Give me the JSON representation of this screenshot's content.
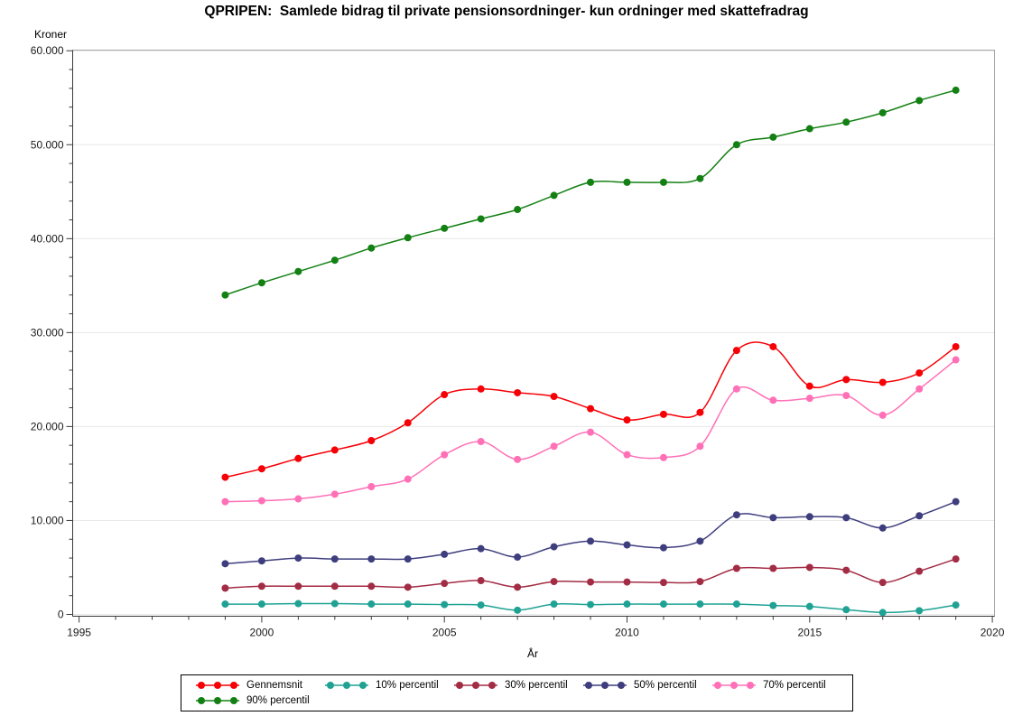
{
  "title": "QPRIPEN:  Samlede bidrag til private pensionsordninger- kun ordninger med skattefradrag",
  "chart_data": {
    "type": "line",
    "title": "QPRIPEN:  Samlede bidrag til private pensionsordninger- kun ordninger med skattefradrag",
    "xlabel": "År",
    "ylabel": "Kroner",
    "xlim": [
      1995,
      2020
    ],
    "ylim": [
      0,
      60000
    ],
    "grid": "horizontal-major",
    "legend_position": "bottom",
    "x_major_ticks": [
      {
        "value": 1995,
        "label": "1995"
      },
      {
        "value": 2000,
        "label": "2000"
      },
      {
        "value": 2005,
        "label": "2005"
      },
      {
        "value": 2010,
        "label": "2010"
      },
      {
        "value": 2015,
        "label": "2015"
      },
      {
        "value": 2020,
        "label": "2020"
      }
    ],
    "x_minor_step": 1,
    "y_major_ticks": [
      {
        "value": 0,
        "label": "0"
      },
      {
        "value": 10000,
        "label": "10.000"
      },
      {
        "value": 20000,
        "label": "20.000"
      },
      {
        "value": 30000,
        "label": "30.000"
      },
      {
        "value": 40000,
        "label": "40.000"
      },
      {
        "value": 50000,
        "label": "50.000"
      },
      {
        "value": 60000,
        "label": "60.000"
      }
    ],
    "y_minor_step": 2000,
    "x": [
      1999,
      2000,
      2001,
      2002,
      2003,
      2004,
      2005,
      2006,
      2007,
      2008,
      2009,
      2010,
      2011,
      2012,
      2013,
      2014,
      2015,
      2016,
      2017,
      2018,
      2019
    ],
    "series": [
      {
        "name": "Gennemsnit",
        "color": "#F60006",
        "values": [
          14600,
          15500,
          16600,
          17500,
          18500,
          20400,
          23400,
          24000,
          23600,
          23200,
          21900,
          20700,
          21300,
          21500,
          28100,
          28500,
          24300,
          25000,
          24700,
          25700,
          28500
        ]
      },
      {
        "name": "10% percentil",
        "color": "#1FA294",
        "values": [
          1100,
          1100,
          1150,
          1150,
          1100,
          1100,
          1050,
          1000,
          450,
          1100,
          1050,
          1100,
          1100,
          1100,
          1100,
          950,
          850,
          500,
          200,
          400,
          1000
        ]
      },
      {
        "name": "30% percentil",
        "color": "#A32C45",
        "values": [
          2800,
          3000,
          3000,
          3000,
          3000,
          2900,
          3300,
          3600,
          2900,
          3500,
          3450,
          3450,
          3400,
          3500,
          4900,
          4900,
          5000,
          4700,
          3400,
          4600,
          5900
        ]
      },
      {
        "name": "50% percentil",
        "color": "#3E3E7E",
        "values": [
          5400,
          5700,
          6000,
          5900,
          5900,
          5900,
          6400,
          7000,
          6100,
          7200,
          7800,
          7400,
          7100,
          7800,
          10600,
          10300,
          10400,
          10300,
          9200,
          10500,
          12000
        ]
      },
      {
        "name": "70% percentil",
        "color": "#FF70B7",
        "values": [
          12000,
          12100,
          12300,
          12800,
          13600,
          14400,
          17000,
          18400,
          16500,
          17900,
          19400,
          17000,
          16700,
          17900,
          24000,
          22800,
          23000,
          23300,
          21200,
          24000,
          27100
        ]
      },
      {
        "name": "90% percentil",
        "color": "#138013",
        "values": [
          34000,
          35300,
          36500,
          37700,
          39000,
          40100,
          41100,
          42100,
          43100,
          44600,
          46000,
          46000,
          46000,
          46400,
          50000,
          50800,
          51700,
          52400,
          53400,
          54700,
          55800
        ]
      }
    ]
  },
  "colors": {
    "frame": "#A6A6A6",
    "axis": "#3A3A3A",
    "gridline": "#E8E8E8",
    "text": "#1A1A1A"
  }
}
